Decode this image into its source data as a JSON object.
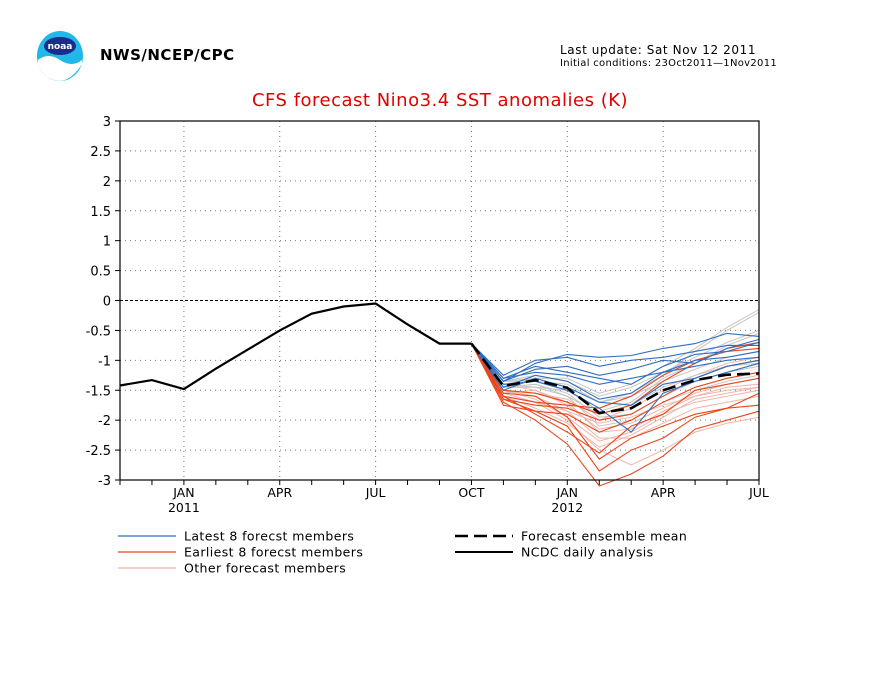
{
  "header": {
    "org": "NWS/NCEP/CPC",
    "last_update": "Last update: Sat Nov 12 2011",
    "initial_conditions": "Initial conditions: 23Oct2011—1Nov2011",
    "logo_text": "noaa"
  },
  "colors": {
    "latest": "#2f6fc0",
    "earliest": "#e8461c",
    "other": "#f0b5a8",
    "other_gray": "#c4c4c4",
    "title": "#e00000",
    "observed": "#000000"
  },
  "chart_data": {
    "type": "line",
    "title": "CFS forecast Nino3.4 SST anomalies (K)",
    "ylim": [
      -3,
      3
    ],
    "yticks": [
      3,
      2.5,
      2,
      1.5,
      1,
      0.5,
      0,
      -0.5,
      -1,
      -1.5,
      -2,
      -2.5,
      -3
    ],
    "ytick_labels": [
      "3",
      "2.5",
      "2",
      "1.5",
      "1",
      "0.5",
      "0",
      "-0.5",
      "-1",
      "-1.5",
      "-2",
      "-2.5",
      "-3"
    ],
    "xlim": [
      "2010-11",
      "2012-07"
    ],
    "xtick_labels": [
      {
        "month": "2011-01",
        "label": "JAN",
        "year": "2011"
      },
      {
        "month": "2011-04",
        "label": "APR",
        "year": ""
      },
      {
        "month": "2011-07",
        "label": "JUL",
        "year": ""
      },
      {
        "month": "2011-10",
        "label": "OCT",
        "year": ""
      },
      {
        "month": "2012-01",
        "label": "JAN",
        "year": "2012"
      },
      {
        "month": "2012-04",
        "label": "APR",
        "year": ""
      },
      {
        "month": "2012-07",
        "label": "JUL",
        "year": ""
      }
    ],
    "grid": true,
    "zero_line": true,
    "legend": [
      {
        "label": "Latest 8 forecst members",
        "style": "latest"
      },
      {
        "label": "Earliest 8 forecst members",
        "style": "earliest"
      },
      {
        "label": "Other forecast members",
        "style": "other"
      },
      {
        "label": "Forecast ensemble mean",
        "style": "mean"
      },
      {
        "label": "NCDC daily analysis",
        "style": "observed"
      }
    ],
    "observed": {
      "x": [
        "2010-11",
        "2010-12",
        "2011-01",
        "2011-02",
        "2011-03",
        "2011-04",
        "2011-05",
        "2011-06",
        "2011-07",
        "2011-08",
        "2011-09",
        "2011-10"
      ],
      "y": [
        -1.42,
        -1.33,
        -1.48,
        -1.14,
        -0.82,
        -0.5,
        -0.22,
        -0.1,
        -0.05,
        -0.4,
        -0.72,
        -0.72
      ]
    },
    "ensemble_mean": {
      "x": [
        "2011-10",
        "2011-11",
        "2011-12",
        "2012-01",
        "2012-02",
        "2012-03",
        "2012-04",
        "2012-05",
        "2012-06",
        "2012-07"
      ],
      "y": [
        -0.72,
        -1.43,
        -1.33,
        -1.46,
        -1.88,
        -1.8,
        -1.5,
        -1.33,
        -1.24,
        -1.22
      ]
    },
    "member_x": [
      "2011-10",
      "2011-11",
      "2011-12",
      "2012-01",
      "2012-02",
      "2012-03",
      "2012-04",
      "2012-05",
      "2012-06",
      "2012-07"
    ],
    "members_latest": [
      [
        -0.72,
        -1.35,
        -1.05,
        -0.9,
        -0.95,
        -0.92,
        -0.8,
        -0.72,
        -0.55,
        -0.6
      ],
      [
        -0.72,
        -1.3,
        -1.1,
        -1.2,
        -1.3,
        -1.4,
        -1.1,
        -0.9,
        -0.85,
        -0.7
      ],
      [
        -0.72,
        -1.4,
        -1.35,
        -1.5,
        -1.8,
        -2.2,
        -1.55,
        -1.35,
        -1.2,
        -1.05
      ],
      [
        -0.72,
        -1.25,
        -1.0,
        -0.95,
        -1.1,
        -1.0,
        -0.95,
        -0.85,
        -0.75,
        -0.75
      ],
      [
        -0.72,
        -1.45,
        -1.25,
        -1.35,
        -1.65,
        -1.55,
        -1.2,
        -1.0,
        -0.95,
        -0.85
      ],
      [
        -0.72,
        -1.35,
        -1.15,
        -1.1,
        -1.25,
        -1.15,
        -1.0,
        -1.05,
        -0.8,
        -0.65
      ],
      [
        -0.72,
        -1.5,
        -1.3,
        -1.45,
        -1.7,
        -1.75,
        -1.4,
        -1.3,
        -1.1,
        -1.0
      ],
      [
        -0.72,
        -1.3,
        -1.2,
        -1.25,
        -1.4,
        -1.3,
        -1.2,
        -1.1,
        -1.0,
        -0.95
      ]
    ],
    "members_earliest": [
      [
        -0.72,
        -1.75,
        -1.85,
        -2.1,
        -2.85,
        -2.5,
        -2.3,
        -1.95,
        -1.8,
        -1.75
      ],
      [
        -0.72,
        -1.6,
        -1.9,
        -2.2,
        -2.55,
        -2.1,
        -1.9,
        -1.5,
        -1.4,
        -1.3
      ],
      [
        -0.72,
        -1.65,
        -1.75,
        -1.8,
        -2.0,
        -1.9,
        -1.6,
        -1.3,
        -1.1,
        -1.0
      ],
      [
        -0.72,
        -1.55,
        -1.6,
        -1.95,
        -2.65,
        -2.3,
        -2.1,
        -1.9,
        -1.8,
        -1.55
      ],
      [
        -0.72,
        -1.5,
        -1.55,
        -1.7,
        -1.9,
        -1.75,
        -1.35,
        -1.05,
        -0.8,
        -0.7
      ],
      [
        -0.72,
        -1.7,
        -2.0,
        -2.4,
        -3.1,
        -2.9,
        -2.6,
        -2.15,
        -2.0,
        -1.85
      ],
      [
        -0.72,
        -1.6,
        -1.7,
        -1.75,
        -1.8,
        -1.6,
        -1.25,
        -1.0,
        -0.85,
        -0.8
      ],
      [
        -0.72,
        -1.65,
        -1.85,
        -1.9,
        -2.2,
        -2.0,
        -1.7,
        -1.45,
        -1.3,
        -1.2
      ]
    ],
    "members_other": [
      [
        -0.72,
        -1.4,
        -1.5,
        -1.7,
        -2.2,
        -2.15,
        -1.85,
        -1.6,
        -1.45,
        -1.4
      ],
      [
        -0.72,
        -1.35,
        -1.3,
        -1.45,
        -1.7,
        -1.55,
        -1.25,
        -0.85,
        -0.5,
        -0.2
      ],
      [
        -0.72,
        -1.5,
        -1.6,
        -1.85,
        -2.3,
        -2.3,
        -2.05,
        -1.8,
        -1.7,
        -1.6
      ],
      [
        -0.72,
        -1.45,
        -1.4,
        -1.55,
        -1.95,
        -1.9,
        -1.6,
        -1.35,
        -1.2,
        -1.1
      ],
      [
        -0.72,
        -1.55,
        -1.7,
        -2.0,
        -2.5,
        -2.75,
        -2.5,
        -2.2,
        -2.05,
        -1.95
      ],
      [
        -0.72,
        -1.4,
        -1.3,
        -1.3,
        -1.55,
        -1.4,
        -1.1,
        -0.8,
        -0.45,
        -0.15
      ],
      [
        -0.72,
        -1.5,
        -1.55,
        -1.65,
        -2.0,
        -1.8,
        -1.5,
        -1.25,
        -1.05,
        -0.95
      ],
      [
        -0.72,
        -1.45,
        -1.45,
        -1.6,
        -2.1,
        -2.0,
        -1.7,
        -1.5,
        -1.35,
        -1.25
      ],
      [
        -0.72,
        -1.6,
        -1.8,
        -2.05,
        -2.45,
        -2.25,
        -1.95,
        -1.65,
        -1.55,
        -1.45
      ],
      [
        -0.72,
        -1.35,
        -1.35,
        -1.4,
        -1.7,
        -1.6,
        -1.35,
        -1.15,
        -0.95,
        -0.85
      ],
      [
        -0.72,
        -1.55,
        -1.5,
        -1.75,
        -2.15,
        -2.05,
        -1.8,
        -1.55,
        -1.4,
        -1.3
      ],
      [
        -0.72,
        -1.4,
        -1.45,
        -1.5,
        -1.85,
        -1.7,
        -1.3,
        -1.05,
        -0.75,
        -0.55
      ],
      [
        -0.72,
        -1.5,
        -1.65,
        -1.95,
        -2.35,
        -2.2,
        -1.9,
        -1.7,
        -1.6,
        -1.5
      ],
      [
        -0.72,
        -1.45,
        -1.4,
        -1.6,
        -1.9,
        -1.75,
        -1.45,
        -1.25,
        -1.1,
        -1.05
      ],
      [
        -0.72,
        -1.6,
        -1.7,
        -1.85,
        -2.05,
        -1.95,
        -1.75,
        -1.6,
        -1.5,
        -1.45
      ],
      [
        -0.72,
        -1.35,
        -1.25,
        -1.35,
        -1.6,
        -1.45,
        -1.2,
        -0.95,
        -0.7,
        -0.5
      ]
    ]
  }
}
